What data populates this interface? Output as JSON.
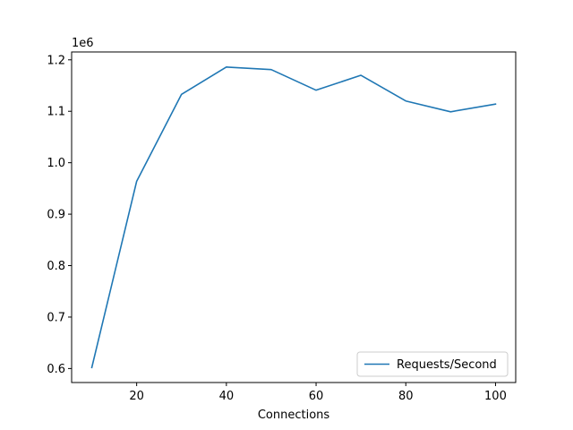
{
  "chart_data": {
    "type": "line",
    "title": "",
    "xlabel": "Connections",
    "ylabel": "",
    "y_offset_label": "1e6",
    "x": [
      10,
      20,
      30,
      40,
      50,
      60,
      70,
      80,
      90,
      100
    ],
    "series": [
      {
        "name": "Requests/Second",
        "color": "#1f77b4",
        "values": [
          602000,
          964000,
          1133000,
          1186000,
          1181000,
          1141000,
          1170000,
          1120000,
          1099000,
          1114000
        ]
      }
    ],
    "xlim": [
      5.5,
      104.5
    ],
    "ylim": [
      0.5728,
      1.2153
    ],
    "xticks": [
      20,
      40,
      60,
      80,
      100
    ],
    "xtick_labels": [
      "20",
      "40",
      "60",
      "80",
      "100"
    ],
    "yticks": [
      0.6,
      0.7,
      0.8,
      0.9,
      1.0,
      1.1,
      1.2
    ],
    "ytick_labels": [
      "0.6",
      "0.7",
      "0.8",
      "0.9",
      "1.0",
      "1.1",
      "1.2"
    ],
    "grid": false,
    "legend_position": "lower-right"
  }
}
